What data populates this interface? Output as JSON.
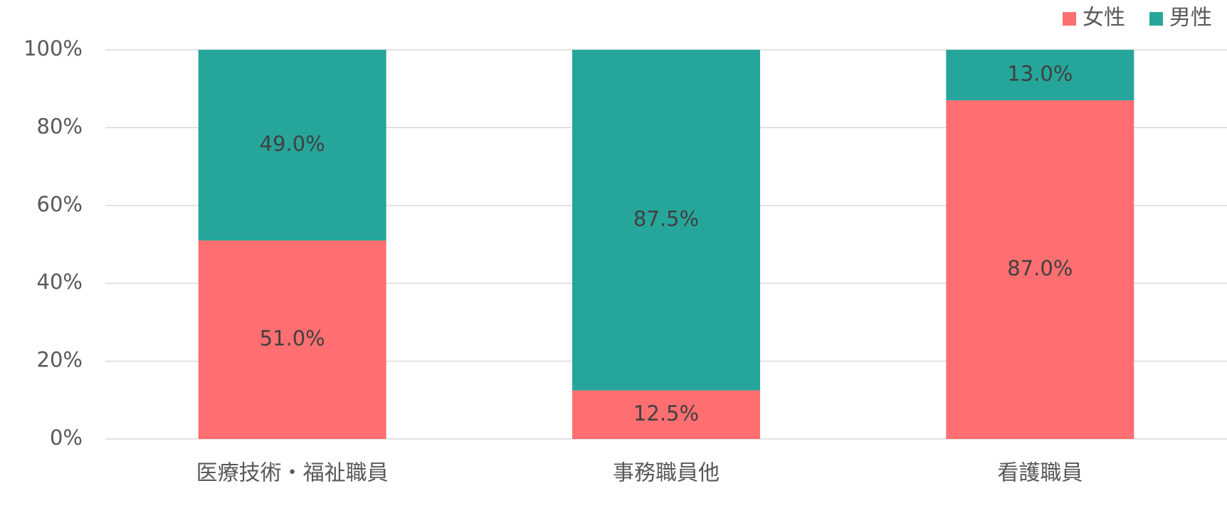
{
  "chart_data": {
    "type": "bar",
    "stacked": true,
    "categories": [
      "医療技術・福祉職員",
      "事務職員他",
      "看護職員"
    ],
    "series": [
      {
        "name": "女性",
        "color": "#ff6f71",
        "values": [
          51.0,
          12.5,
          87.0
        ],
        "value_labels": [
          "51.0%",
          "12.5%",
          "87.0%"
        ]
      },
      {
        "name": "男性",
        "color": "#26a69a",
        "values": [
          49.0,
          87.5,
          13.0
        ],
        "value_labels": [
          "49.0%",
          "87.5%",
          "13.0%"
        ]
      }
    ],
    "ylim": [
      0,
      100
    ],
    "yticks": [
      {
        "value": 0,
        "label": "0%"
      },
      {
        "value": 20,
        "label": "20%"
      },
      {
        "value": 40,
        "label": "40%"
      },
      {
        "value": 60,
        "label": "60%"
      },
      {
        "value": 80,
        "label": "80%"
      },
      {
        "value": 100,
        "label": "100%"
      }
    ],
    "grid": true,
    "legend": "top-right"
  }
}
